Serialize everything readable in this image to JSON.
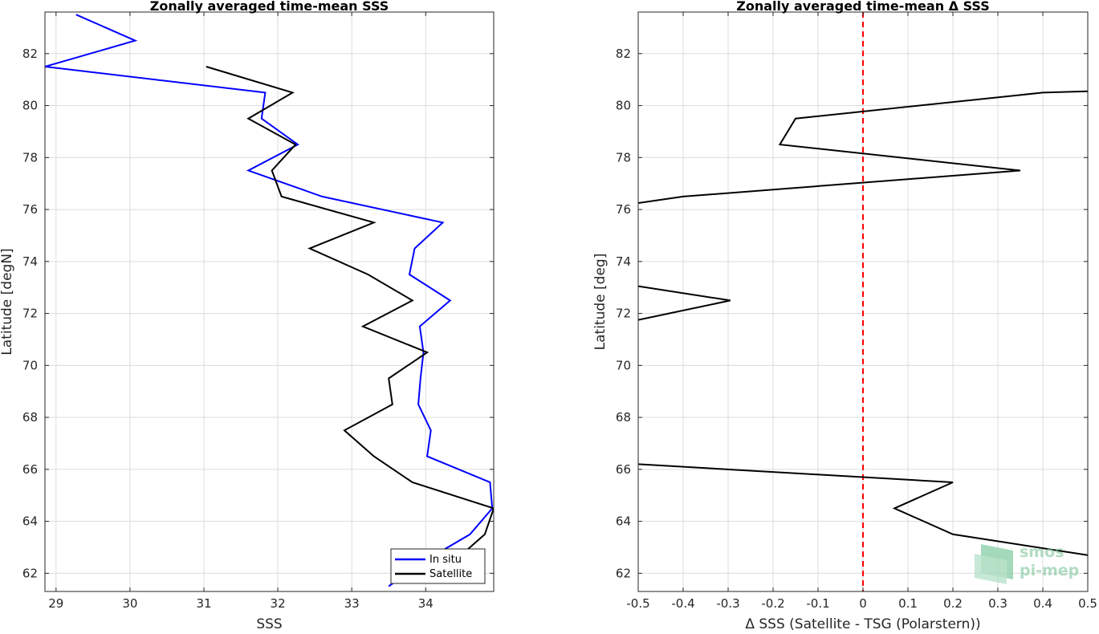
{
  "chart_data": [
    {
      "type": "line",
      "title": "Zonally averaged time-mean SSS",
      "xlabel": "SSS",
      "ylabel": "Latitude [degN]",
      "xlim": [
        28.85,
        34.92
      ],
      "ylim": [
        61.3,
        83.6
      ],
      "xticks": [
        29,
        30,
        31,
        32,
        33,
        34
      ],
      "yticks": [
        62,
        64,
        66,
        68,
        70,
        72,
        74,
        76,
        78,
        80,
        82
      ],
      "grid": true,
      "legend": "bottom-right",
      "series": [
        {
          "name": "In situ",
          "color": "#0000ff",
          "points": [
            [
              29.27,
              83.5
            ],
            [
              30.07,
              82.5
            ],
            [
              28.85,
              81.5
            ],
            [
              31.83,
              80.5
            ],
            [
              31.78,
              79.5
            ],
            [
              32.27,
              78.5
            ],
            [
              31.6,
              77.5
            ],
            [
              32.6,
              76.5
            ],
            [
              34.23,
              75.5
            ],
            [
              33.85,
              74.5
            ],
            [
              33.78,
              73.5
            ],
            [
              34.33,
              72.5
            ],
            [
              33.92,
              71.5
            ],
            [
              33.97,
              70.5
            ],
            [
              33.93,
              69.5
            ],
            [
              33.9,
              68.5
            ],
            [
              34.07,
              67.5
            ],
            [
              34.02,
              66.5
            ],
            [
              34.87,
              65.5
            ],
            [
              34.9,
              64.5
            ],
            [
              34.6,
              63.5
            ],
            [
              34.0,
              62.5
            ],
            [
              33.5,
              61.5
            ]
          ]
        },
        {
          "name": "Satellite",
          "color": "#000000",
          "points": [
            [
              31.03,
              81.5
            ],
            [
              32.2,
              80.5
            ],
            [
              31.6,
              79.5
            ],
            [
              32.24,
              78.5
            ],
            [
              31.92,
              77.5
            ],
            [
              32.05,
              76.5
            ],
            [
              33.3,
              75.5
            ],
            [
              32.43,
              74.5
            ],
            [
              33.22,
              73.5
            ],
            [
              33.82,
              72.5
            ],
            [
              33.15,
              71.5
            ],
            [
              34.02,
              70.5
            ],
            [
              33.5,
              69.5
            ],
            [
              33.55,
              68.5
            ],
            [
              32.9,
              67.5
            ],
            [
              33.3,
              66.5
            ],
            [
              33.82,
              65.5
            ],
            [
              34.92,
              64.5
            ],
            [
              34.8,
              63.5
            ],
            [
              34.4,
              62.5
            ],
            [
              34.07,
              61.7
            ]
          ]
        }
      ]
    },
    {
      "type": "line",
      "title": "Zonally averaged time-mean Δ SSS",
      "xlabel": "Δ SSS (Satellite - TSG (Polarstern))",
      "ylabel": "Latitude [deg]",
      "xlim": [
        -0.5,
        0.5
      ],
      "ylim": [
        61.3,
        83.6
      ],
      "xticks": [
        -0.5,
        -0.4,
        -0.3,
        -0.2,
        -0.1,
        0,
        0.1,
        0.2,
        0.3,
        0.4,
        0.5
      ],
      "xticklabels": [
        "-0.5",
        "-0.4",
        "-0.3",
        "-0.2",
        "-0.1",
        "0",
        "0.1",
        "0.2",
        "0.3",
        "0.4",
        "0.5"
      ],
      "yticks": [
        62,
        64,
        66,
        68,
        70,
        72,
        74,
        76,
        78,
        80,
        82
      ],
      "grid": true,
      "reference_line": {
        "x": 0,
        "color": "#ff0000",
        "style": "dashed"
      },
      "series": [
        {
          "color": "#000000",
          "segments": [
            [
              [
                0.5,
                80.55
              ],
              [
                0.4,
                80.5
              ],
              [
                -0.15,
                79.5
              ],
              [
                -0.185,
                78.5
              ],
              [
                0.35,
                77.5
              ],
              [
                -0.4,
                76.5
              ],
              [
                -0.5,
                76.25
              ]
            ],
            [
              [
                -0.5,
                73.05
              ],
              [
                -0.295,
                72.5
              ],
              [
                -0.5,
                71.75
              ]
            ],
            [
              [
                -0.5,
                66.2
              ],
              [
                0.2,
                65.5
              ],
              [
                0.07,
                64.5
              ],
              [
                0.2,
                63.5
              ],
              [
                0.5,
                62.7
              ]
            ]
          ]
        }
      ]
    }
  ],
  "watermark": {
    "line1": "smos",
    "line2": "pi-mep"
  }
}
